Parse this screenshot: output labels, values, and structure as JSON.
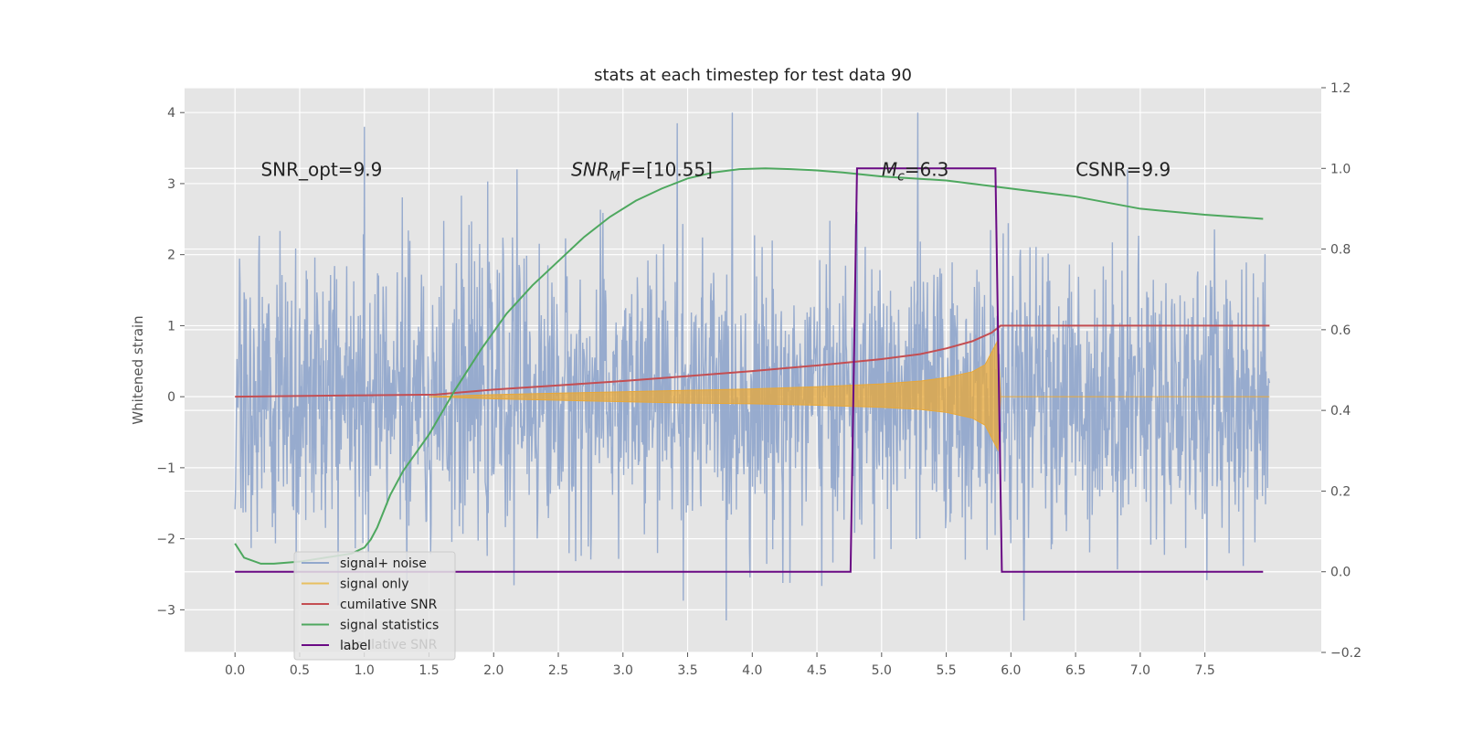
{
  "chart_data": {
    "type": "line",
    "title": "stats at each timestep for test data 90",
    "ylabel": "Whitened strain",
    "xlim": [
      -0.39,
      8.4
    ],
    "ylim": [
      -3.6,
      4.35
    ],
    "y2lim": [
      -0.2,
      1.2
    ],
    "grid": true,
    "legend_position": "lower-left",
    "xticks": [
      0.0,
      0.5,
      1.0,
      1.5,
      2.0,
      2.5,
      3.0,
      3.5,
      4.0,
      4.5,
      5.0,
      5.5,
      6.0,
      6.5,
      7.0,
      7.5
    ],
    "xtick_labels": [
      "0.0",
      "0.5",
      "1.0",
      "1.5",
      "2.0",
      "2.5",
      "3.0",
      "3.5",
      "4.0",
      "4.5",
      "5.0",
      "5.5",
      "6.0",
      "6.5",
      "7.0",
      "7.5"
    ],
    "yticks": [
      -3,
      -2,
      -1,
      0,
      1,
      2,
      3,
      4
    ],
    "ytick_labels": [
      "−3",
      "−2",
      "−1",
      "0",
      "1",
      "2",
      "3",
      "4"
    ],
    "y2ticks": [
      -0.2,
      0.0,
      0.2,
      0.4,
      0.6,
      0.8,
      1.0,
      1.2
    ],
    "y2tick_labels": [
      "−0.2",
      "0.0",
      "0.2",
      "0.4",
      "0.6",
      "0.8",
      "1.0",
      "1.2"
    ],
    "annotations": [
      {
        "id": "snr-opt",
        "text": "SNR_opt=9.9",
        "x": 0.2,
        "y": 3.2
      },
      {
        "id": "snr-mf",
        "text": "SNR",
        "sub": "M",
        "rest": "F=[10.55]",
        "x": 2.6,
        "y": 3.2
      },
      {
        "id": "chirp-mass",
        "text": "M",
        "sub": "c",
        "rest": "=6.3",
        "x": 5.0,
        "y": 3.2
      },
      {
        "id": "csnr",
        "text": "CSNR=9.9",
        "x": 6.5,
        "y": 3.2
      }
    ],
    "legend": [
      {
        "name": "signal+ noise",
        "color": "#92a8cc"
      },
      {
        "name": "signal only",
        "color": "#e8c060"
      },
      {
        "name": "cumilative SNR",
        "color": "#c44e52"
      },
      {
        "name": "signal statistics",
        "color": "#4ea85f"
      },
      {
        "name": "label",
        "color": "#6a0a84"
      }
    ],
    "legend_overlap_text": "cumilative SNR",
    "series": [
      {
        "name": "signal+ noise",
        "axis": "left",
        "color": "#92a8cc",
        "x_range": [
          0.0,
          8.0
        ],
        "n_samples": 2048,
        "envelope": [
          -3.2,
          4.0
        ],
        "spikes": [
          [
            1.0,
            3.8
          ],
          [
            3.42,
            3.85
          ],
          [
            5.28,
            4.0
          ],
          [
            3.8,
            -3.15
          ],
          [
            6.1,
            -3.15
          ],
          [
            2.18,
            3.2
          ],
          [
            6.9,
            3.2
          ]
        ]
      },
      {
        "name": "signal only",
        "axis": "left",
        "color": "#e8a838",
        "x": [
          1.5,
          2.0,
          2.5,
          3.0,
          3.5,
          4.0,
          4.5,
          5.0,
          5.3,
          5.5,
          5.7,
          5.8,
          5.9,
          5.92,
          8.0
        ],
        "upper": [
          0.0,
          0.03,
          0.05,
          0.07,
          0.09,
          0.11,
          0.14,
          0.18,
          0.22,
          0.27,
          0.35,
          0.45,
          0.8,
          0.0,
          0.0
        ],
        "lower": [
          0.0,
          -0.03,
          -0.05,
          -0.07,
          -0.09,
          -0.1,
          -0.12,
          -0.15,
          -0.18,
          -0.22,
          -0.3,
          -0.4,
          -0.75,
          0.0,
          0.0
        ]
      },
      {
        "name": "cumilative SNR",
        "axis": "left",
        "color": "#c44e52",
        "x": [
          0.0,
          1.0,
          1.55,
          2.0,
          2.5,
          3.0,
          3.5,
          4.0,
          4.5,
          5.0,
          5.3,
          5.5,
          5.7,
          5.85,
          5.92,
          8.0
        ],
        "y": [
          0.0,
          0.02,
          0.03,
          0.1,
          0.16,
          0.22,
          0.29,
          0.36,
          0.44,
          0.53,
          0.6,
          0.68,
          0.78,
          0.9,
          1.0,
          1.0
        ]
      },
      {
        "name": "signal statistics",
        "axis": "right",
        "color": "#4ea85f",
        "x": [
          0.0,
          0.07,
          0.2,
          0.3,
          0.5,
          0.7,
          0.9,
          1.0,
          1.05,
          1.1,
          1.2,
          1.3,
          1.5,
          1.7,
          1.9,
          2.1,
          2.3,
          2.5,
          2.7,
          2.9,
          3.1,
          3.3,
          3.5,
          3.7,
          3.9,
          4.1,
          4.3,
          4.5,
          4.7,
          5.0,
          5.5,
          6.0,
          6.5,
          7.0,
          7.5,
          7.95
        ],
        "y": [
          0.07,
          0.035,
          0.02,
          0.02,
          0.025,
          0.035,
          0.045,
          0.06,
          0.08,
          0.11,
          0.19,
          0.25,
          0.34,
          0.45,
          0.55,
          0.64,
          0.71,
          0.77,
          0.83,
          0.88,
          0.92,
          0.95,
          0.975,
          0.99,
          0.998,
          1.0,
          0.998,
          0.995,
          0.99,
          0.98,
          0.97,
          0.95,
          0.93,
          0.9,
          0.885,
          0.875
        ]
      },
      {
        "name": "label",
        "axis": "right",
        "color": "#6a0a84",
        "x": [
          0.0,
          4.76,
          4.81,
          5.88,
          5.93,
          7.95
        ],
        "y": [
          0.0,
          0.0,
          1.0,
          1.0,
          0.0,
          0.0
        ]
      }
    ]
  }
}
